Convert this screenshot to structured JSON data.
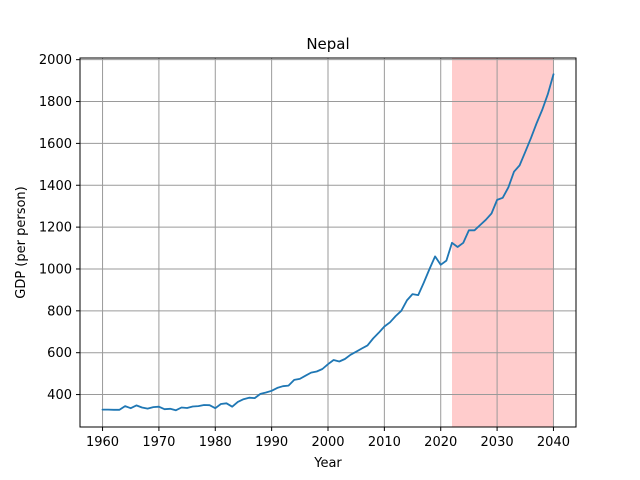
{
  "chart_data": {
    "type": "line",
    "title": "Nepal",
    "xlabel": "Year",
    "ylabel": "GDP (per person)",
    "xlim": [
      1956,
      2044
    ],
    "ylim": [
      245,
      2008
    ],
    "x_ticks": [
      1960,
      1970,
      1980,
      1990,
      2000,
      2010,
      2020,
      2030,
      2040
    ],
    "y_ticks": [
      400,
      600,
      800,
      1000,
      1200,
      1400,
      1600,
      1800,
      2000
    ],
    "grid": true,
    "shaded_region": {
      "x_start": 2022,
      "x_end": 2040,
      "color": "#ffcccc"
    },
    "series": [
      {
        "color": "#1f77b4",
        "x": [
          1960,
          1961,
          1962,
          1963,
          1964,
          1965,
          1966,
          1967,
          1968,
          1969,
          1970,
          1971,
          1972,
          1973,
          1974,
          1975,
          1976,
          1977,
          1978,
          1979,
          1980,
          1981,
          1982,
          1983,
          1984,
          1985,
          1986,
          1987,
          1988,
          1989,
          1990,
          1991,
          1992,
          1993,
          1994,
          1995,
          1996,
          1997,
          1998,
          1999,
          2000,
          2001,
          2002,
          2003,
          2004,
          2005,
          2006,
          2007,
          2008,
          2009,
          2010,
          2011,
          2012,
          2013,
          2014,
          2015,
          2016,
          2017,
          2018,
          2019,
          2020,
          2021,
          2022,
          2023,
          2024,
          2025,
          2026,
          2027,
          2028,
          2029,
          2030,
          2031,
          2032,
          2033,
          2034,
          2035,
          2036,
          2037,
          2038,
          2039,
          2040
        ],
        "y": [
          328,
          328,
          327,
          327,
          345,
          335,
          348,
          338,
          333,
          340,
          342,
          330,
          332,
          325,
          338,
          336,
          343,
          345,
          350,
          349,
          335,
          355,
          358,
          342,
          365,
          378,
          385,
          383,
          403,
          410,
          418,
          432,
          440,
          443,
          470,
          475,
          490,
          505,
          510,
          522,
          545,
          565,
          558,
          570,
          590,
          605,
          620,
          635,
          668,
          695,
          725,
          745,
          775,
          800,
          850,
          880,
          875,
          935,
          1000,
          1060,
          1020,
          1040,
          1125,
          1105,
          1125,
          1185,
          1185,
          1210,
          1235,
          1265,
          1330,
          1340,
          1390,
          1465,
          1495,
          1560,
          1625,
          1695,
          1760,
          1835,
          1930
        ]
      }
    ]
  }
}
